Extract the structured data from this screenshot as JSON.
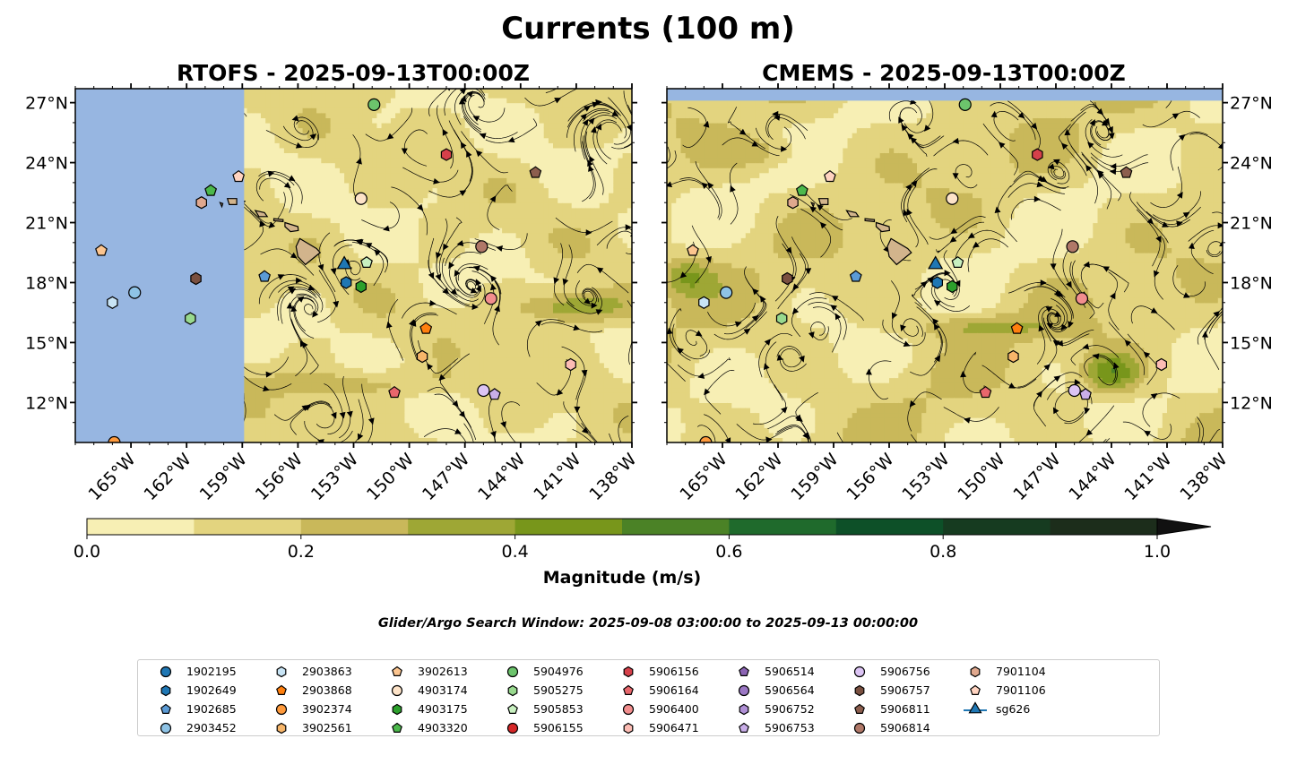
{
  "figure_title": "Currents (100 m)",
  "search_window_text": "Glider/Argo Search Window: 2025-09-08 03:00:00 to 2025-09-13 00:00:00",
  "colors": {
    "land": "#d2b48c",
    "ocean_mask": "#97b6e1",
    "stream": "#000000",
    "cmap": [
      "#f7efb4",
      "#e3d47f",
      "#c9b85a",
      "#9ea735",
      "#78961b",
      "#4b8226",
      "#1f6a2c",
      "#0d5028",
      "#163b20",
      "#1c2d1b"
    ]
  },
  "chart_data": [
    {
      "type": "map",
      "title": "RTOFS - 2025-09-13T00:00Z",
      "xlim": [
        -168,
        -138
      ],
      "ylim": [
        10,
        27.7
      ],
      "lon_ticks": [
        "165°W",
        "162°W",
        "159°W",
        "156°W",
        "153°W",
        "150°W",
        "147°W",
        "144°W",
        "141°W",
        "138°W"
      ],
      "lat_ticks": [
        "12°N",
        "15°N",
        "18°N",
        "21°N",
        "24°N",
        "27°N"
      ],
      "masked_lon_west_of": -158.9
    },
    {
      "type": "map",
      "title": "CMEMS - 2025-09-13T00:00Z",
      "xlim": [
        -168,
        -138
      ],
      "ylim": [
        10,
        27.7
      ],
      "lon_ticks": [
        "165°W",
        "162°W",
        "159°W",
        "156°W",
        "153°W",
        "150°W",
        "147°W",
        "144°W",
        "141°W",
        "138°W"
      ],
      "lat_ticks": [
        "12°N",
        "15°N",
        "18°N",
        "21°N",
        "24°N",
        "27°N"
      ],
      "masked_lat_north_of": 27.1
    },
    {
      "type": "colorbar",
      "label": "Magnitude (m/s)",
      "ticks": [
        "0.0",
        "0.2",
        "0.4",
        "0.6",
        "0.8",
        "1.0"
      ],
      "levels": [
        0,
        0.1,
        0.2,
        0.3,
        0.4,
        0.5,
        0.6,
        0.7,
        0.8,
        0.9,
        1.0
      ],
      "extend": "max"
    }
  ],
  "floats": [
    {
      "id": "1902195",
      "marker": "circle",
      "color": "#1f77b4",
      "lon": null,
      "lat": null
    },
    {
      "id": "1902649",
      "marker": "hexagon",
      "color": "#1f77b4",
      "lon": -153.4,
      "lat": 18.0
    },
    {
      "id": "1902685",
      "marker": "pentagon",
      "color": "#5b9bd5",
      "lon": -157.8,
      "lat": 18.3
    },
    {
      "id": "2903452",
      "marker": "circle",
      "color": "#8ec3e6",
      "lon": -164.8,
      "lat": 17.5
    },
    {
      "id": "2903863",
      "marker": "hexagon",
      "color": "#c8e4f5",
      "lon": -166.0,
      "lat": 17.0
    },
    {
      "id": "2903868",
      "marker": "pentagon",
      "color": "#ff7f0e",
      "lon": -149.1,
      "lat": 15.7
    },
    {
      "id": "3902374",
      "marker": "circle",
      "color": "#ff9a3c",
      "lon": -165.9,
      "lat": 10.0
    },
    {
      "id": "3902561",
      "marker": "hexagon",
      "color": "#f7b66a",
      "lon": -149.3,
      "lat": 14.3
    },
    {
      "id": "3902613",
      "marker": "pentagon",
      "color": "#fcc58f",
      "lon": -166.6,
      "lat": 19.6
    },
    {
      "id": "4903174",
      "marker": "circle",
      "color": "#fde3c8",
      "lon": -152.6,
      "lat": 22.2
    },
    {
      "id": "4903175",
      "marker": "hexagon",
      "color": "#2ca02c",
      "lon": -152.6,
      "lat": 17.8
    },
    {
      "id": "4903320",
      "marker": "pentagon",
      "color": "#4cb84c",
      "lon": -160.7,
      "lat": 22.6
    },
    {
      "id": "5904976",
      "marker": "circle",
      "color": "#6cc46c",
      "lon": -151.9,
      "lat": 26.9
    },
    {
      "id": "5905275",
      "marker": "hexagon",
      "color": "#98d98e",
      "lon": -161.8,
      "lat": 16.2
    },
    {
      "id": "5905853",
      "marker": "pentagon",
      "color": "#c8f0c0",
      "lon": -152.3,
      "lat": 19.0
    },
    {
      "id": "5906155",
      "marker": "circle",
      "color": "#d62728",
      "lon": null,
      "lat": null
    },
    {
      "id": "5906156",
      "marker": "hexagon",
      "color": "#d6404a",
      "lon": -148.0,
      "lat": 24.4
    },
    {
      "id": "5906164",
      "marker": "pentagon",
      "color": "#e8676c",
      "lon": -150.8,
      "lat": 12.5
    },
    {
      "id": "5906400",
      "marker": "circle",
      "color": "#f28e8e",
      "lon": -145.6,
      "lat": 17.2
    },
    {
      "id": "5906471",
      "marker": "hexagon",
      "color": "#fcbcb4",
      "lon": -141.3,
      "lat": 13.9
    },
    {
      "id": "5906514",
      "marker": "pentagon",
      "color": "#8c64b4",
      "lon": null,
      "lat": null
    },
    {
      "id": "5906564",
      "marker": "circle",
      "color": "#9b77c4",
      "lon": null,
      "lat": null
    },
    {
      "id": "5906752",
      "marker": "hexagon",
      "color": "#b090d6",
      "lon": null,
      "lat": null
    },
    {
      "id": "5906753",
      "marker": "pentagon",
      "color": "#c9aee8",
      "lon": -145.4,
      "lat": 12.4
    },
    {
      "id": "5906756",
      "marker": "circle",
      "color": "#dcc4f4",
      "lon": -146.0,
      "lat": 12.6
    },
    {
      "id": "5906757",
      "marker": "hexagon",
      "color": "#7a5040",
      "lon": -161.5,
      "lat": 18.2
    },
    {
      "id": "5906811",
      "marker": "pentagon",
      "color": "#8c5e4e",
      "lon": -143.2,
      "lat": 23.5
    },
    {
      "id": "5906814",
      "marker": "circle",
      "color": "#b07868",
      "lon": -146.1,
      "lat": 19.8
    },
    {
      "id": "7901104",
      "marker": "hexagon",
      "color": "#e0a88e",
      "lon": -161.2,
      "lat": 22.0
    },
    {
      "id": "7901106",
      "marker": "pentagon",
      "color": "#ffd3c0",
      "lon": -159.2,
      "lat": 23.3
    },
    {
      "id": "sg626",
      "marker": "triangle",
      "color": "#1f77b4",
      "lon": -153.5,
      "lat": 18.9
    }
  ]
}
